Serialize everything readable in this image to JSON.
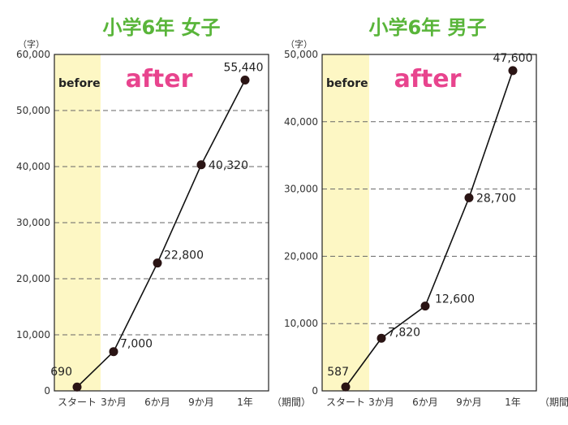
{
  "colors": {
    "title": "#59b53a",
    "after": "#e8448e",
    "before_band": "#fdf7c4",
    "line": "#111111",
    "grid": "#666666"
  },
  "chart_data": [
    {
      "type": "line",
      "title": "小学6年 女子",
      "ylabel": "（字）",
      "x_period_label": "（期間）",
      "before_label": "before",
      "after_label": "after",
      "categories": [
        "スタート",
        "3か月",
        "6か月",
        "9か月",
        "1年"
      ],
      "values": [
        690,
        7000,
        22800,
        40320,
        55440
      ],
      "value_labels": [
        "690",
        "7,000",
        "22,800",
        "40,320",
        "55,440"
      ],
      "ylim": [
        0,
        60000
      ],
      "yticks": [
        0,
        10000,
        20000,
        30000,
        40000,
        50000,
        60000
      ],
      "ytick_labels": [
        "0",
        "10,000",
        "20,000",
        "30,000",
        "40,000",
        "50,000",
        "60,000"
      ],
      "grid": true
    },
    {
      "type": "line",
      "title": "小学6年 男子",
      "ylabel": "（字）",
      "x_period_label": "（期間）",
      "before_label": "before",
      "after_label": "after",
      "categories": [
        "スタート",
        "3か月",
        "6か月",
        "9か月",
        "1年"
      ],
      "values": [
        587,
        7820,
        12600,
        28700,
        47600
      ],
      "value_labels": [
        "587",
        "7,820",
        "12,600",
        "28,700",
        "47,600"
      ],
      "ylim": [
        0,
        50000
      ],
      "yticks": [
        0,
        10000,
        20000,
        30000,
        40000,
        50000
      ],
      "ytick_labels": [
        "0",
        "10,000",
        "20,000",
        "30,000",
        "40,000",
        "50,000"
      ],
      "grid": true
    }
  ]
}
